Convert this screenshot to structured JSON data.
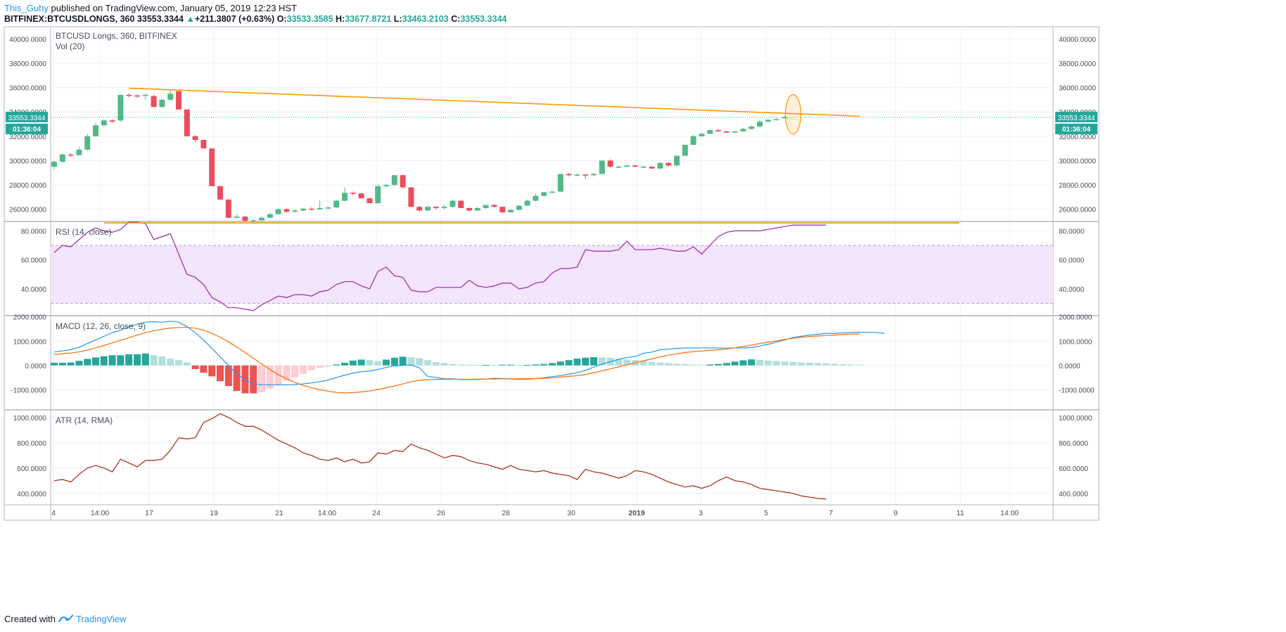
{
  "header": {
    "author": "This_Guhy",
    "published_text": "published on TradingView.com, January 05, 2019 12:23 HST",
    "symbol_line": "BITFINEX:BTCUSDLONGS, 360",
    "last_value": "33553.3344",
    "change_arrow": "▲",
    "change": "+211.3807 (+0.63%)",
    "o_label": "O:",
    "o_value": "33533.3585",
    "h_label": "H:",
    "h_value": "33677.8721",
    "l_label": "L:",
    "l_value": "33463.2103",
    "c_label": "C:",
    "c_value": "33553.3344"
  },
  "footer": {
    "created_with": "Created with",
    "brand": "TradingView",
    "logo_icon": "tradingview-logo-icon"
  },
  "colors": {
    "up": "#26a69a",
    "up_candle": "#53b987",
    "down": "#eb4d5c",
    "rsi": "#9c27b0",
    "rsi_band": "#f3e5fc",
    "macd": "#2196f3",
    "signal": "#ff6d00",
    "atr": "#a52714",
    "trendline": "#ff9800",
    "price_line": "#26a69a"
  },
  "chart_data": [
    {
      "type": "candlestick",
      "title": "BTCUSD Longs, 360, BITFINEX",
      "subtitle": "Vol (20)",
      "ylim": [
        25000,
        41000
      ],
      "y_ticks": [
        "40000.0000",
        "38000.0000",
        "36000.0000",
        "34000.0000",
        "32000.0000",
        "30000.0000",
        "28000.0000",
        "26000.0000"
      ],
      "y_tick_values": [
        40000,
        38000,
        36000,
        34000,
        32000,
        30000,
        28000,
        26000
      ],
      "x_tick_labels": [
        "4",
        "14:00",
        "17",
        "19",
        "21",
        "14:00",
        "24",
        "26",
        "28",
        "30",
        "2019",
        "3",
        "5",
        "7",
        "9",
        "11",
        "14:00"
      ],
      "price_label": "33553.3344",
      "countdown": "01:36:04",
      "current_price": 33553.3344,
      "candles": [
        [
          29500,
          30000,
          29300,
          29900
        ],
        [
          29900,
          30600,
          29800,
          30500
        ],
        [
          30500,
          30600,
          30300,
          30450
        ],
        [
          30450,
          31100,
          30400,
          30900
        ],
        [
          30900,
          32200,
          30800,
          32000
        ],
        [
          32000,
          33100,
          31950,
          32900
        ],
        [
          32900,
          33400,
          32800,
          33300
        ],
        [
          33300,
          33400,
          33100,
          33200
        ],
        [
          33300,
          35400,
          33200,
          35400
        ],
        [
          35400,
          35500,
          35200,
          35350
        ],
        [
          35350,
          35450,
          35150,
          35300
        ],
        [
          35350,
          35500,
          35000,
          35400
        ],
        [
          35300,
          35400,
          34400,
          34400
        ],
        [
          34400,
          35100,
          34350,
          35000
        ],
        [
          35000,
          35800,
          34900,
          35500
        ],
        [
          35700,
          35800,
          34200,
          34200
        ],
        [
          34200,
          34200,
          32000,
          32000
        ],
        [
          32000,
          32100,
          31500,
          31700
        ],
        [
          31700,
          31700,
          31000,
          31000
        ],
        [
          31000,
          31000,
          27900,
          27900
        ],
        [
          27900,
          27900,
          26800,
          26800
        ],
        [
          26800,
          26800,
          25300,
          25300
        ],
        [
          25300,
          25600,
          25250,
          25400
        ],
        [
          25400,
          25450,
          25000,
          25050
        ],
        [
          25050,
          25200,
          24800,
          25100
        ],
        [
          25100,
          25400,
          25000,
          25300
        ],
        [
          25300,
          25700,
          25250,
          25600
        ],
        [
          25600,
          26100,
          25550,
          26000
        ],
        [
          26000,
          26100,
          25700,
          25800
        ],
        [
          25800,
          26000,
          25700,
          25900
        ],
        [
          25900,
          26100,
          25850,
          26050
        ],
        [
          26050,
          26150,
          25900,
          26000
        ],
        [
          26000,
          26700,
          25950,
          26100
        ],
        [
          26100,
          26200,
          26000,
          26150
        ],
        [
          26150,
          26800,
          26100,
          26700
        ],
        [
          26700,
          27800,
          26650,
          27350
        ],
        [
          27350,
          27450,
          27150,
          27300
        ],
        [
          27300,
          27350,
          26900,
          26900
        ],
        [
          26900,
          26950,
          26500,
          26500
        ],
        [
          26500,
          28050,
          26450,
          27900
        ],
        [
          27900,
          28100,
          27800,
          28000
        ],
        [
          28000,
          28800,
          27900,
          28800
        ],
        [
          28800,
          28850,
          27700,
          27800
        ],
        [
          27800,
          27800,
          26200,
          26200
        ],
        [
          26200,
          26250,
          25800,
          25900
        ],
        [
          25900,
          26300,
          25850,
          26200
        ],
        [
          26200,
          26250,
          26000,
          26100
        ],
        [
          26100,
          26400,
          26000,
          26200
        ],
        [
          26200,
          26800,
          26100,
          26700
        ],
        [
          26700,
          26750,
          26100,
          26100
        ],
        [
          26100,
          26150,
          25800,
          25900
        ],
        [
          25900,
          26200,
          25850,
          26100
        ],
        [
          26100,
          26400,
          26050,
          26350
        ],
        [
          26350,
          26400,
          26150,
          26200
        ],
        [
          26200,
          26250,
          25700,
          25750
        ],
        [
          25750,
          26000,
          25700,
          25950
        ],
        [
          25950,
          26350,
          25900,
          26300
        ],
        [
          26300,
          26800,
          26250,
          26700
        ],
        [
          26700,
          27300,
          26650,
          27100
        ],
        [
          27100,
          27450,
          27050,
          27400
        ],
        [
          27400,
          27500,
          27300,
          27450
        ],
        [
          27450,
          28900,
          27400,
          28900
        ],
        [
          28900,
          29000,
          28700,
          28800
        ],
        [
          28800,
          28950,
          28700,
          28850
        ],
        [
          28850,
          28900,
          28500,
          28800
        ],
        [
          28800,
          29000,
          28700,
          28900
        ],
        [
          28900,
          30000,
          28850,
          30000
        ],
        [
          30000,
          30100,
          29400,
          29500
        ],
        [
          29500,
          29600,
          29400,
          29500
        ],
        [
          29500,
          29650,
          29450,
          29600
        ],
        [
          29600,
          29650,
          29450,
          29500
        ],
        [
          29500,
          29600,
          29400,
          29500
        ],
        [
          29500,
          29550,
          29300,
          29350
        ],
        [
          29350,
          29900,
          29300,
          29800
        ],
        [
          29800,
          29850,
          29500,
          29600
        ],
        [
          29600,
          30400,
          29550,
          30400
        ],
        [
          30400,
          31300,
          30350,
          31300
        ],
        [
          31300,
          32100,
          31250,
          32000
        ],
        [
          32000,
          32300,
          31950,
          32200
        ],
        [
          32200,
          32600,
          32150,
          32500
        ],
        [
          32500,
          32600,
          32400,
          32400
        ],
        [
          32400,
          32450,
          32250,
          32300
        ],
        [
          32300,
          32400,
          32250,
          32400
        ],
        [
          32400,
          32700,
          32350,
          32600
        ],
        [
          32600,
          32900,
          32550,
          32800
        ],
        [
          32800,
          33300,
          32750,
          33200
        ],
        [
          33200,
          33400,
          33150,
          33350
        ],
        [
          33350,
          33500,
          33300,
          33400
        ],
        [
          33533,
          33678,
          33463,
          33553
        ]
      ],
      "trendline": {
        "from": [
          9,
          35950
        ],
        "to": [
          97,
          33650
        ]
      }
    },
    {
      "type": "line",
      "title": "RSI (14, close)",
      "ylim": [
        22,
        86
      ],
      "y_ticks": [
        "80.0000",
        "60.0000",
        "40.0000"
      ],
      "y_tick_values": [
        80,
        60,
        40
      ],
      "band": [
        30,
        70
      ],
      "values": [
        65,
        70,
        69,
        74,
        79,
        82,
        80,
        79,
        81,
        86,
        86,
        85,
        74,
        76,
        78,
        64,
        50,
        48,
        43,
        34,
        31,
        27,
        27,
        26,
        25,
        29,
        32,
        35,
        34,
        36,
        36,
        35,
        38,
        39,
        43,
        45,
        45,
        42,
        40,
        52,
        55,
        49,
        48,
        39,
        38,
        38,
        41,
        41,
        41,
        41,
        46,
        42,
        41,
        42,
        44,
        44,
        40,
        41,
        44,
        45,
        51,
        54,
        54,
        55,
        67,
        66,
        66,
        66,
        67,
        73,
        67,
        67,
        67,
        68,
        67,
        66,
        66,
        69,
        64,
        70,
        76,
        79,
        80,
        80,
        80,
        80,
        81,
        82,
        83,
        84,
        84,
        84,
        84,
        84
      ],
      "trendline": {
        "from": [
          6,
          85.5
        ],
        "to": [
          109,
          85.5
        ]
      }
    },
    {
      "type": "line",
      "title": "MACD (12, 26, close, 9)",
      "ylim": [
        -1800,
        2050
      ],
      "y_ticks": [
        "2000.0000",
        "1000.0000",
        "0.0000",
        "-1000.0000"
      ],
      "y_tick_values": [
        2000,
        1000,
        0,
        -1000
      ],
      "series": [
        {
          "values": [
            550,
            600,
            650,
            750,
            900,
            1050,
            1200,
            1350,
            1450,
            1600,
            1700,
            1780,
            1800,
            1780,
            1820,
            1780,
            1600,
            1350,
            1050,
            700,
            350,
            0,
            -350,
            -600,
            -760,
            -800,
            -800,
            -800,
            -800,
            -790,
            -760,
            -720,
            -670,
            -600,
            -500,
            -400,
            -320,
            -260,
            -230,
            -170,
            -80,
            -20,
            0,
            20,
            -100,
            -450,
            -500,
            -550,
            -550,
            -580,
            -580,
            -580,
            -560,
            -530,
            -540,
            -560,
            -570,
            -570,
            -540,
            -510,
            -460,
            -420,
            -360,
            -300,
            -200,
            -70,
            60,
            150,
            250,
            330,
            370,
            500,
            550,
            650,
            670,
            700,
            720,
            720,
            720,
            720,
            720,
            710,
            720,
            720,
            740,
            800,
            870,
            960,
            1050,
            1150,
            1200,
            1250,
            1280,
            1320,
            1320,
            1340,
            1360,
            1370,
            1360,
            1360,
            1320
          ]
        },
        {
          "values": [
            450,
            480,
            510,
            560,
            630,
            720,
            820,
            930,
            1030,
            1140,
            1250,
            1350,
            1430,
            1490,
            1540,
            1560,
            1570,
            1530,
            1450,
            1320,
            1160,
            970,
            760,
            530,
            300,
            60,
            -170,
            -380,
            -550,
            -700,
            -820,
            -920,
            -1000,
            -1060,
            -1110,
            -1130,
            -1120,
            -1090,
            -1050,
            -990,
            -920,
            -850,
            -760,
            -670,
            -610,
            -590,
            -575,
            -570,
            -570,
            -568,
            -570,
            -566,
            -560,
            -556,
            -552,
            -552,
            -550,
            -548,
            -542,
            -530,
            -510,
            -480,
            -450,
            -420,
            -370,
            -300,
            -220,
            -140,
            -60,
            30,
            110,
            190,
            270,
            350,
            420,
            480,
            530,
            570,
            600,
            620,
            650,
            680,
            720,
            780,
            840,
            900,
            960,
            1010,
            1070,
            1120,
            1160,
            1190,
            1210,
            1230,
            1250,
            1270,
            1290,
            1300
          ]
        }
      ],
      "histogram": [
        110,
        110,
        120,
        190,
        270,
        330,
        380,
        420,
        420,
        460,
        460,
        490,
        430,
        370,
        280,
        220,
        130,
        -150,
        -300,
        -450,
        -650,
        -850,
        -1050,
        -1150,
        -1150,
        -1100,
        -950,
        -800,
        -640,
        -500,
        -350,
        -200,
        -100,
        -50,
        40,
        110,
        200,
        240,
        220,
        180,
        240,
        320,
        360,
        340,
        300,
        220,
        140,
        100,
        60,
        40,
        30,
        20,
        20,
        10,
        30,
        30,
        20,
        20,
        40,
        60,
        100,
        160,
        220,
        280,
        320,
        340,
        330,
        310,
        280,
        250,
        220,
        180,
        150,
        120,
        90,
        70,
        60,
        40,
        30,
        40,
        60,
        100,
        160,
        210,
        250,
        230,
        200,
        180,
        160,
        140,
        120,
        110,
        100,
        80,
        70,
        50,
        40,
        30
      ]
    },
    {
      "type": "line",
      "title": "ATR (14, RMA)",
      "ylim": [
        310,
        1060
      ],
      "y_ticks": [
        "1000.0000",
        "800.0000",
        "600.0000",
        "400.0000"
      ],
      "y_tick_values": [
        1000,
        800,
        600,
        400
      ],
      "values": [
        500,
        510,
        490,
        550,
        600,
        620,
        600,
        570,
        670,
        640,
        610,
        660,
        660,
        670,
        740,
        840,
        830,
        840,
        960,
        990,
        1030,
        1000,
        960,
        930,
        930,
        900,
        860,
        820,
        790,
        760,
        720,
        700,
        670,
        660,
        680,
        650,
        670,
        640,
        650,
        720,
        710,
        740,
        730,
        790,
        760,
        740,
        710,
        680,
        700,
        690,
        660,
        640,
        630,
        610,
        590,
        620,
        590,
        580,
        570,
        580,
        560,
        550,
        540,
        510,
        590,
        570,
        560,
        540,
        520,
        540,
        580,
        570,
        550,
        520,
        490,
        470,
        450,
        460,
        440,
        460,
        500,
        530,
        500,
        490,
        470,
        440,
        430,
        420,
        410,
        400,
        380,
        370,
        360,
        355
      ]
    }
  ]
}
